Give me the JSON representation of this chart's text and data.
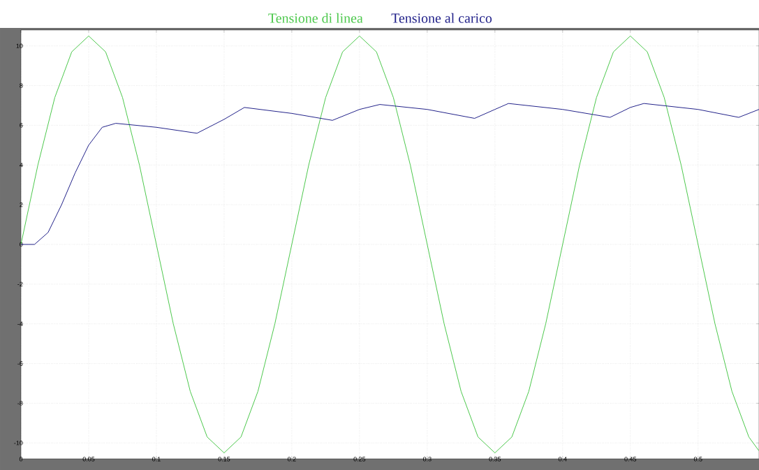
{
  "chart_data": {
    "type": "line",
    "legend": "top",
    "grid": true,
    "line_style": "solid",
    "marker": "none",
    "xlim": [
      0,
      0.545
    ],
    "ylim": [
      -10.8,
      10.8
    ],
    "xticks": [
      0,
      0.05,
      0.1,
      0.15,
      0.2,
      0.25,
      0.3,
      0.35,
      0.4,
      0.45,
      0.5
    ],
    "yticks": [
      -10,
      -8,
      -6,
      -4,
      -2,
      0,
      2,
      4,
      6,
      8,
      10
    ],
    "series": [
      {
        "name": "Tensione di linea",
        "color": "#4cc84c",
        "x": [
          0,
          0.0125,
          0.025,
          0.0375,
          0.05,
          0.0625,
          0.075,
          0.0875,
          0.1,
          0.1125,
          0.125,
          0.1375,
          0.15,
          0.1625,
          0.175,
          0.1875,
          0.2,
          0.2125,
          0.225,
          0.2375,
          0.25,
          0.2625,
          0.275,
          0.2875,
          0.3,
          0.3125,
          0.325,
          0.3375,
          0.35,
          0.3625,
          0.375,
          0.3875,
          0.4,
          0.4125,
          0.425,
          0.4375,
          0.45,
          0.4625,
          0.475,
          0.4875,
          0.5,
          0.5125,
          0.525,
          0.5375,
          0.545
        ],
        "values": [
          0,
          4.0,
          7.4,
          9.7,
          10.5,
          9.7,
          7.4,
          4.0,
          0,
          -4.0,
          -7.4,
          -9.7,
          -10.5,
          -9.7,
          -7.4,
          -4.0,
          0,
          4.0,
          7.4,
          9.7,
          10.5,
          9.7,
          7.4,
          4.0,
          0,
          -4.0,
          -7.4,
          -9.7,
          -10.5,
          -9.7,
          -7.4,
          -4.0,
          0,
          4.0,
          7.4,
          9.7,
          10.5,
          9.7,
          7.4,
          4.0,
          0,
          -4.0,
          -7.4,
          -9.7,
          -10.4
        ]
      },
      {
        "name": "Tensione al carico",
        "color": "#22228a",
        "x": [
          0,
          0.01,
          0.02,
          0.03,
          0.04,
          0.05,
          0.06,
          0.07,
          0.1,
          0.13,
          0.15,
          0.165,
          0.2,
          0.23,
          0.25,
          0.265,
          0.3,
          0.335,
          0.35,
          0.36,
          0.4,
          0.435,
          0.45,
          0.46,
          0.5,
          0.53,
          0.545
        ],
        "values": [
          0,
          0,
          0.6,
          2.0,
          3.6,
          5.0,
          5.9,
          6.1,
          5.9,
          5.6,
          6.3,
          6.9,
          6.6,
          6.25,
          6.8,
          7.05,
          6.8,
          6.35,
          6.8,
          7.1,
          6.8,
          6.4,
          6.9,
          7.1,
          6.8,
          6.4,
          6.8
        ]
      }
    ]
  }
}
